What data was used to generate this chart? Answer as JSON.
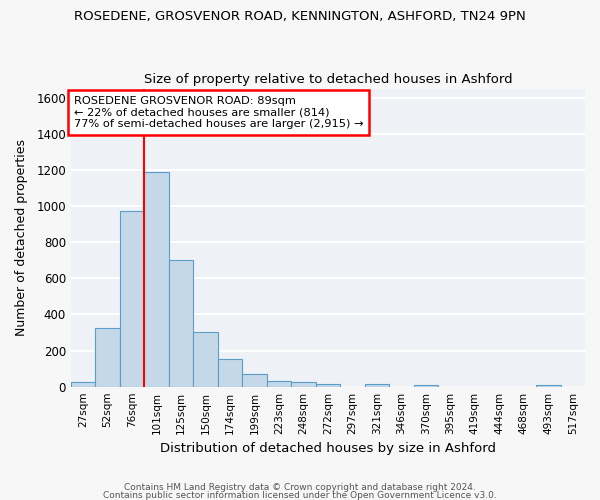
{
  "title1": "ROSEDENE, GROSVENOR ROAD, KENNINGTON, ASHFORD, TN24 9PN",
  "title2": "Size of property relative to detached houses in Ashford",
  "xlabel": "Distribution of detached houses by size in Ashford",
  "ylabel": "Number of detached properties",
  "categories": [
    "27sqm",
    "52sqm",
    "76sqm",
    "101sqm",
    "125sqm",
    "150sqm",
    "174sqm",
    "199sqm",
    "223sqm",
    "248sqm",
    "272sqm",
    "297sqm",
    "321sqm",
    "346sqm",
    "370sqm",
    "395sqm",
    "419sqm",
    "444sqm",
    "468sqm",
    "493sqm",
    "517sqm"
  ],
  "values": [
    25,
    325,
    970,
    1190,
    700,
    300,
    155,
    70,
    30,
    25,
    15,
    0,
    15,
    0,
    10,
    0,
    0,
    0,
    0,
    10,
    0
  ],
  "bar_color": "#c5d8e8",
  "bar_edge_color": "#5b9dc9",
  "red_line_x": 2.5,
  "annotation_line1": "ROSEDENE GROSVENOR ROAD: 89sqm",
  "annotation_line2": "← 22% of detached houses are smaller (814)",
  "annotation_line3": "77% of semi-detached houses are larger (2,915) →",
  "ylim": [
    0,
    1650
  ],
  "yticks": [
    0,
    200,
    400,
    600,
    800,
    1000,
    1200,
    1400,
    1600
  ],
  "bg_color": "#eef2f7",
  "grid_color": "#ffffff",
  "fig_bg": "#f7f7f7",
  "footnote1": "Contains HM Land Registry data © Crown copyright and database right 2024.",
  "footnote2": "Contains public sector information licensed under the Open Government Licence v3.0."
}
